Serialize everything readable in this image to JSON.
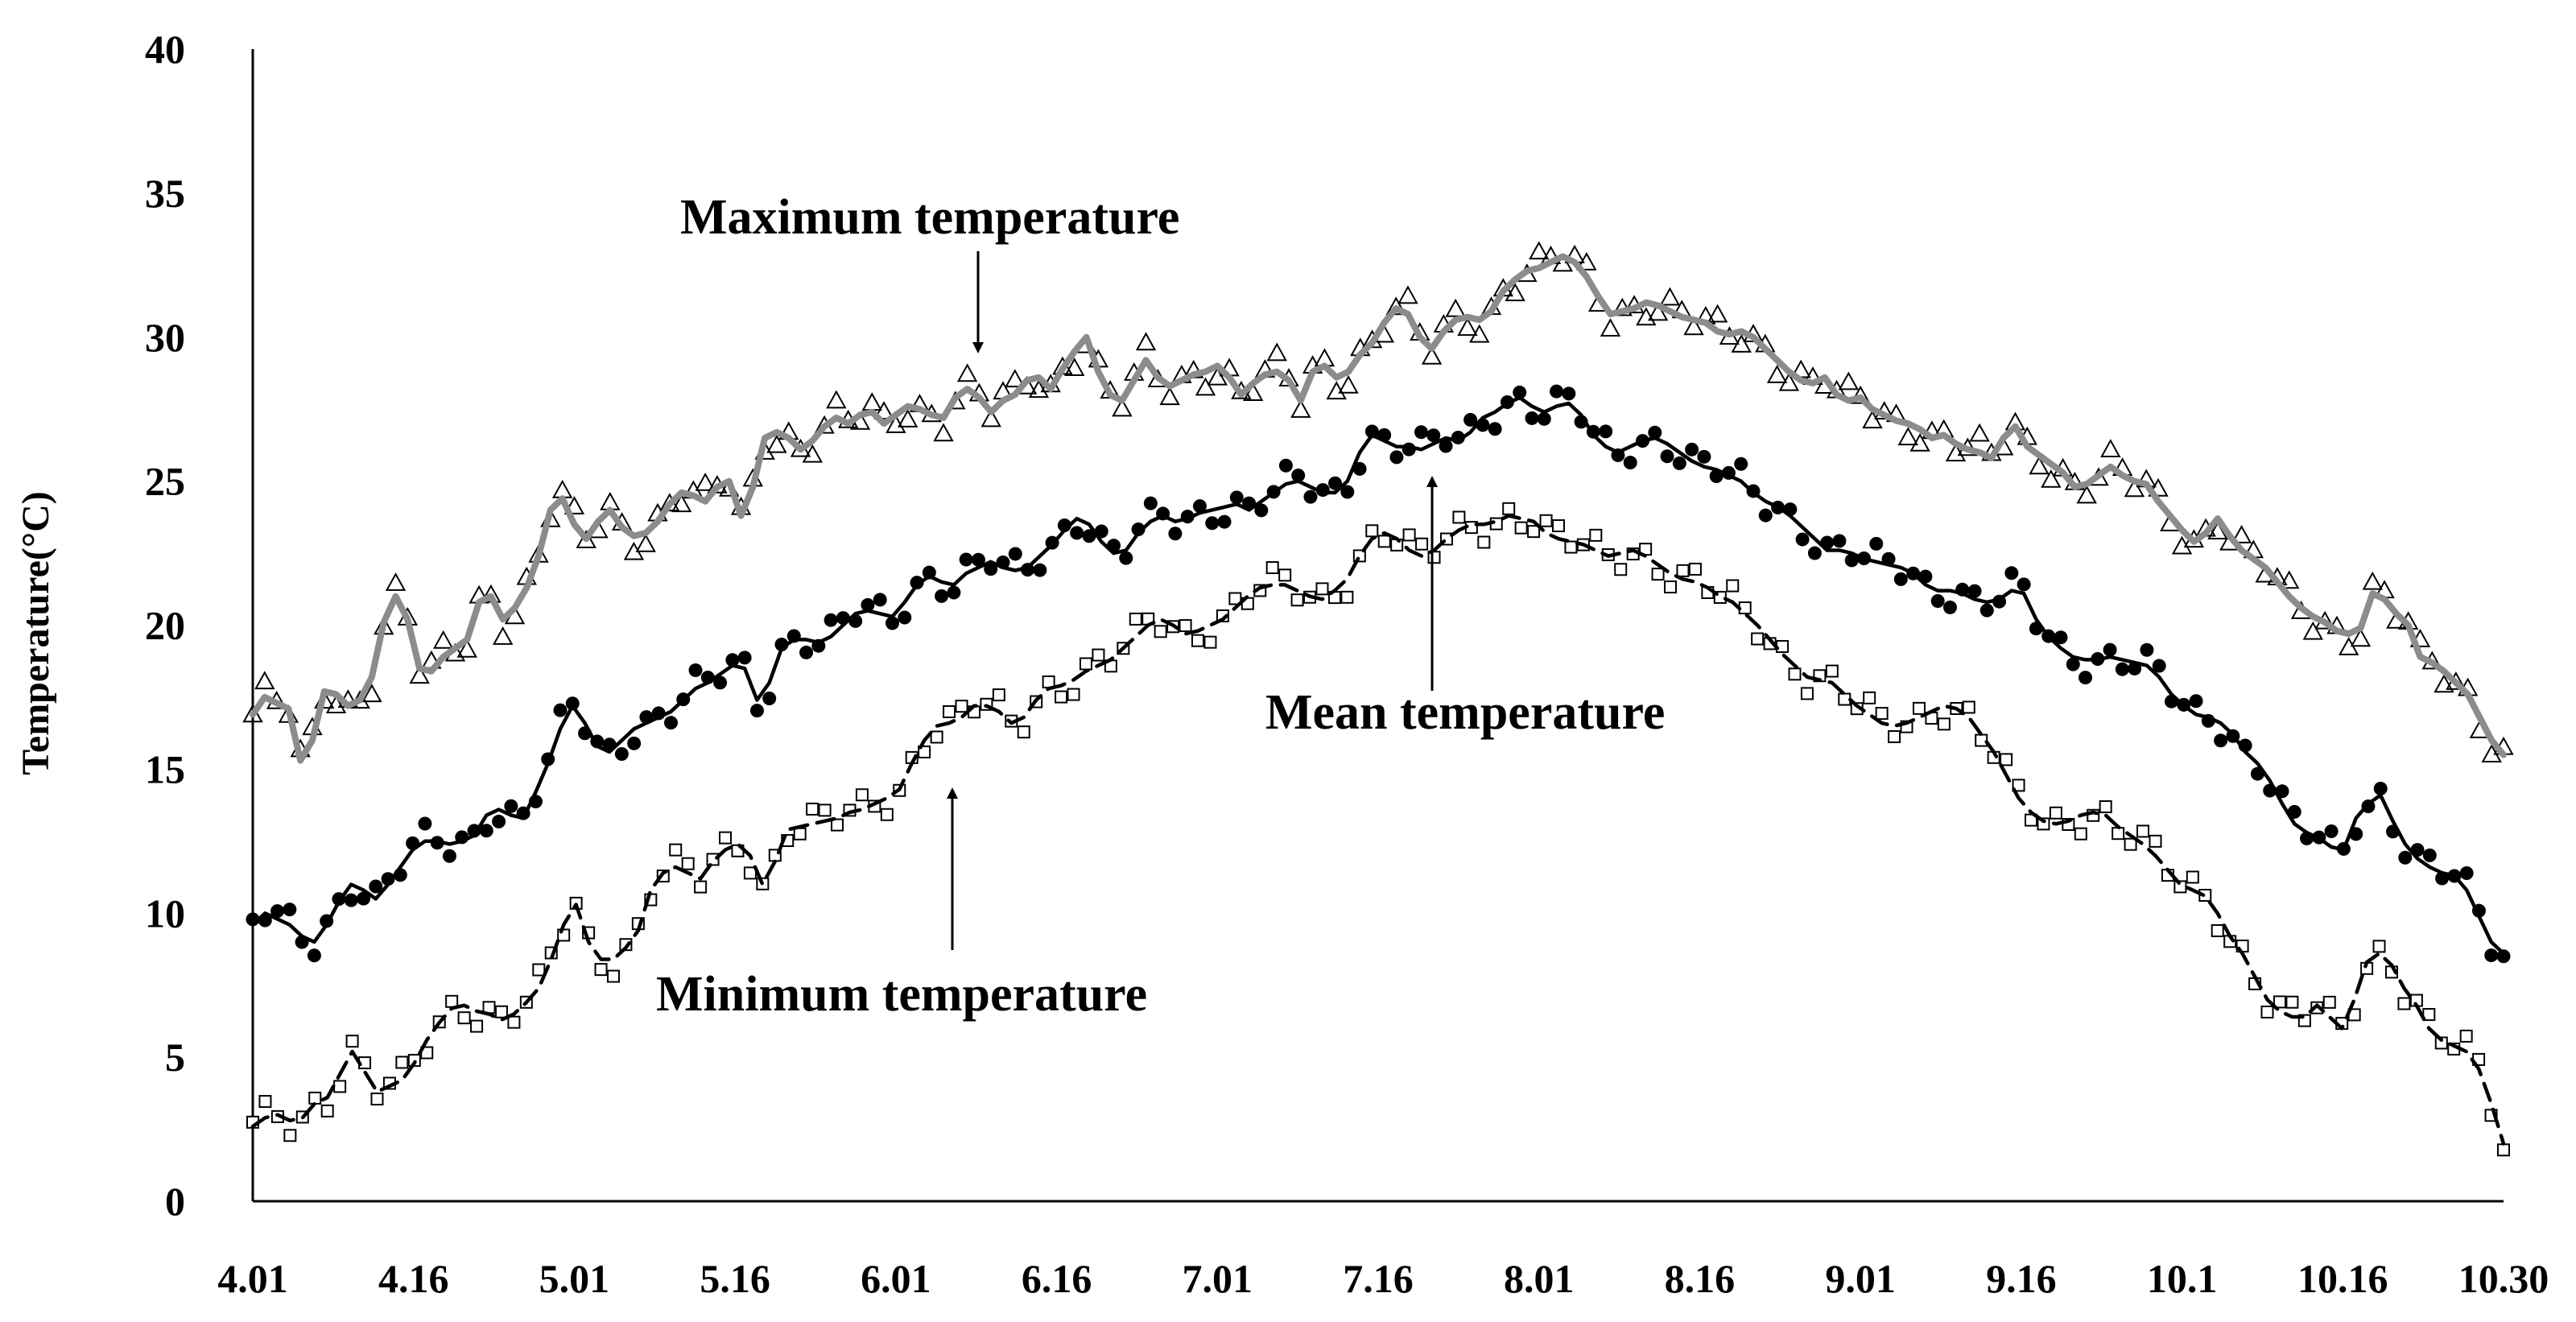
{
  "chart_data": {
    "type": "line",
    "ylabel": "Temperature(°C)",
    "xlabel": "",
    "ylim": [
      0,
      40
    ],
    "yticks": [
      "0",
      "5",
      "10",
      "15",
      "20",
      "25",
      "30",
      "35",
      "40"
    ],
    "xticks": [
      "4.01",
      "4.16",
      "5.01",
      "5.16",
      "6.01",
      "6.16",
      "7.01",
      "7.16",
      "8.01",
      "8.16",
      "9.01",
      "9.16",
      "10.1",
      "10.16",
      "10.30"
    ],
    "x_range": [
      "4.01",
      "10.30"
    ],
    "days_total": 212,
    "grid": false,
    "legend": "none",
    "annotations": [
      "Maximum temperature",
      "Mean temperature",
      "Minimum temperature"
    ],
    "series": [
      {
        "style": "solid-gray-triangles",
        "color": "#8c8c8c",
        "values": [
          16.9,
          17.5,
          17.3,
          17.1,
          15.3,
          16.0,
          17.7,
          17.6,
          17.2,
          17.4,
          18.2,
          20.1,
          21.0,
          20.2,
          18.5,
          18.4,
          18.9,
          19.2,
          19.5,
          20.8,
          21.0,
          20.2,
          20.6,
          21.3,
          22.4,
          24.0,
          24.4,
          23.5,
          23.0,
          23.6,
          24.0,
          23.4,
          23.1,
          23.2,
          23.6,
          24.2,
          24.6,
          24.5,
          24.3,
          24.8,
          25.0,
          23.8,
          24.8,
          26.5,
          26.7,
          26.5,
          26.1,
          26.4,
          26.9,
          27.2,
          27.0,
          27.3,
          27.4,
          27.0,
          27.3,
          27.6,
          27.5,
          27.3,
          27.2,
          27.9,
          28.2,
          27.9,
          27.4,
          27.8,
          28.0,
          28.5,
          28.6,
          28.2,
          28.9,
          29.5,
          30.0,
          28.8,
          28.0,
          27.8,
          28.5,
          29.2,
          28.6,
          28.3,
          28.5,
          28.7,
          28.8,
          29.0,
          28.6,
          28.0,
          28.4,
          28.7,
          28.8,
          28.5,
          27.8,
          28.8,
          29.0,
          28.6,
          28.8,
          29.4,
          29.8,
          30.5,
          31.0,
          30.8,
          30.0,
          29.6,
          30.2,
          30.6,
          30.7,
          30.6,
          30.9,
          31.6,
          32.0,
          32.3,
          32.4,
          32.6,
          32.8,
          32.6,
          32.1,
          31.4,
          30.8,
          30.9,
          31.0,
          31.2,
          31.1,
          30.9,
          30.7,
          30.6,
          30.5,
          30.2,
          30.1,
          30.2,
          30.0,
          29.6,
          29.2,
          28.8,
          28.5,
          28.4,
          28.6,
          28.0,
          27.8,
          27.9,
          27.5,
          27.3,
          27.1,
          27.0,
          26.8,
          26.5,
          26.6,
          26.3,
          26.1,
          26.0,
          25.8,
          26.5,
          26.9,
          26.2,
          25.9,
          25.6,
          25.3,
          24.8,
          24.9,
          25.2,
          25.5,
          25.2,
          25.0,
          24.9,
          24.3,
          23.8,
          23.3,
          22.9,
          23.2,
          23.7,
          23.1,
          22.6,
          22.3,
          22.0,
          21.5,
          21.0,
          20.6,
          20.3,
          20.1,
          19.8,
          19.7,
          19.9,
          21.1,
          20.9,
          20.4,
          20.0,
          18.9,
          18.7,
          18.4,
          18.0,
          17.6,
          16.8,
          16.0,
          15.5
        ]
      },
      {
        "style": "solid-black-dots",
        "color": "#000000",
        "values": [
          9.6,
          10.0,
          9.8,
          9.6,
          9.2,
          9.0,
          9.6,
          10.4,
          11.0,
          10.8,
          10.5,
          11.0,
          11.6,
          12.2,
          12.5,
          12.5,
          12.4,
          12.5,
          12.7,
          13.4,
          13.6,
          13.4,
          13.3,
          14.2,
          15.2,
          16.4,
          17.2,
          16.6,
          15.8,
          15.6,
          16.0,
          16.4,
          16.6,
          16.8,
          17.0,
          17.4,
          17.8,
          18.0,
          18.3,
          18.6,
          18.5,
          17.4,
          18.0,
          19.2,
          19.5,
          19.5,
          19.4,
          19.6,
          20.0,
          20.4,
          20.5,
          20.4,
          20.3,
          20.8,
          21.4,
          21.7,
          21.5,
          21.4,
          21.8,
          22.0,
          22.2,
          22.0,
          21.9,
          22.0,
          22.4,
          22.8,
          23.3,
          23.7,
          23.5,
          22.9,
          22.5,
          22.6,
          23.2,
          23.6,
          23.8,
          23.6,
          23.7,
          23.9,
          24.0,
          24.1,
          24.2,
          24.0,
          24.3,
          24.6,
          24.9,
          25.0,
          24.8,
          24.6,
          24.6,
          25.0,
          26.0,
          26.6,
          26.4,
          26.2,
          26.2,
          26.1,
          26.3,
          26.5,
          26.4,
          26.7,
          27.2,
          27.4,
          27.7,
          27.9,
          27.6,
          27.4,
          27.6,
          27.7,
          27.3,
          26.6,
          26.2,
          26.0,
          26.2,
          26.4,
          26.5,
          26.3,
          26.0,
          25.7,
          25.5,
          25.4,
          25.2,
          25.0,
          24.6,
          24.3,
          24.1,
          23.8,
          23.4,
          23.0,
          22.6,
          22.6,
          22.5,
          22.3,
          22.2,
          22.1,
          22.0,
          21.8,
          21.4,
          21.2,
          21.2,
          21.1,
          20.9,
          20.8,
          20.9,
          21.2,
          21.1,
          20.2,
          19.6,
          19.2,
          18.9,
          18.8,
          18.8,
          18.9,
          18.8,
          18.7,
          18.6,
          18.2,
          17.6,
          17.2,
          16.9,
          16.8,
          16.6,
          16.2,
          15.6,
          15.2,
          14.6,
          13.8,
          13.1,
          12.8,
          12.6,
          12.3,
          12.2,
          13.3,
          13.8,
          14.1,
          13.2,
          12.4,
          11.9,
          11.6,
          11.4,
          11.3,
          10.8,
          9.9,
          9.0,
          8.6
        ]
      },
      {
        "style": "dashed-black-squares",
        "color": "#000000",
        "values": [
          2.6,
          2.9,
          3.0,
          2.8,
          2.9,
          3.4,
          3.6,
          4.4,
          5.2,
          4.5,
          3.8,
          4.0,
          4.2,
          4.8,
          5.6,
          6.2,
          6.7,
          6.8,
          6.6,
          6.5,
          6.3,
          6.5,
          6.9,
          7.4,
          8.4,
          9.6,
          10.3,
          9.0,
          8.4,
          8.4,
          8.8,
          9.4,
          10.8,
          11.4,
          11.6,
          11.4,
          11.2,
          11.8,
          12.2,
          12.4,
          12.0,
          11.0,
          11.8,
          12.9,
          13.0,
          13.1,
          13.2,
          13.3,
          13.5,
          13.6,
          13.8,
          14.0,
          14.3,
          15.2,
          16.0,
          16.5,
          16.6,
          16.8,
          17.2,
          17.2,
          17.0,
          16.6,
          16.8,
          17.4,
          17.8,
          17.9,
          18.1,
          18.4,
          18.6,
          18.8,
          19.2,
          19.6,
          20.0,
          20.2,
          20.0,
          19.7,
          19.8,
          20.0,
          20.2,
          20.6,
          21.0,
          21.3,
          21.4,
          21.4,
          21.2,
          21.0,
          20.9,
          21.2,
          21.6,
          22.4,
          23.0,
          23.2,
          23.0,
          22.6,
          22.4,
          22.6,
          23.0,
          23.3,
          23.5,
          23.5,
          23.6,
          23.8,
          23.7,
          23.6,
          23.2,
          23.0,
          22.9,
          22.8,
          22.6,
          22.4,
          22.5,
          22.6,
          22.4,
          22.1,
          21.8,
          21.6,
          21.5,
          21.3,
          21.0,
          20.8,
          20.4,
          20.0,
          19.5,
          19.0,
          18.6,
          18.2,
          18.1,
          18.0,
          17.6,
          17.2,
          16.9,
          16.6,
          16.5,
          16.6,
          16.8,
          17.0,
          17.2,
          17.1,
          16.8,
          16.2,
          15.6,
          14.8,
          14.0,
          13.5,
          13.2,
          13.1,
          13.2,
          13.4,
          13.5,
          13.4,
          13.0,
          12.7,
          12.4,
          12.0,
          11.5,
          11.0,
          10.8,
          10.6,
          10.0,
          9.2,
          8.6,
          7.8,
          7.0,
          6.6,
          6.4,
          6.4,
          6.8,
          6.4,
          6.0,
          7.0,
          8.3,
          8.6,
          8.2,
          7.4,
          6.8,
          6.0,
          5.6,
          5.4,
          5.2,
          4.6,
          3.4,
          2.0
        ]
      }
    ]
  }
}
